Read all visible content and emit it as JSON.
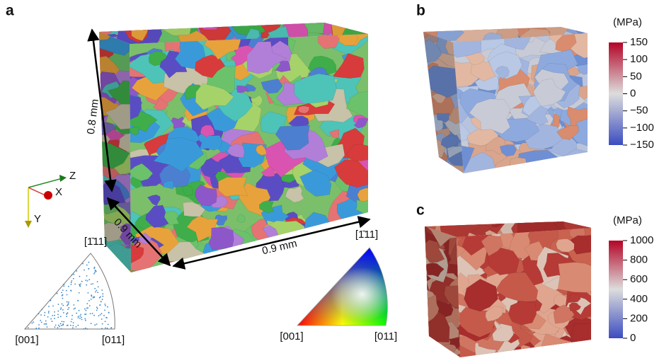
{
  "panels": {
    "a": {
      "label": "a",
      "dimensions": {
        "height": "0.8 mm",
        "depth": "0.9 mm",
        "width": "0.9 mm"
      },
      "axes": {
        "z": "Z",
        "x": "X",
        "y": "Y"
      },
      "pole_figure": {
        "top": "[1̄11]",
        "left": "[001]",
        "right": "[011]"
      },
      "color_key": {
        "top": "[1̄11]",
        "left": "[001]",
        "right": "[011]"
      }
    },
    "b": {
      "label": "b",
      "colorbar": {
        "unit": "(MPa)",
        "lim": [
          -150,
          150
        ],
        "ticks": [
          150,
          100,
          50,
          0,
          {
            "value": -50,
            "label": "−50"
          },
          {
            "value": -100,
            "label": "−100"
          },
          {
            "value": -150,
            "label": "−150"
          }
        ]
      }
    },
    "c": {
      "label": "c",
      "colorbar": {
        "unit": "(MPa)",
        "lim": [
          0,
          1000
        ],
        "ticks": [
          1000,
          800,
          600,
          400,
          200,
          0
        ]
      }
    }
  }
}
